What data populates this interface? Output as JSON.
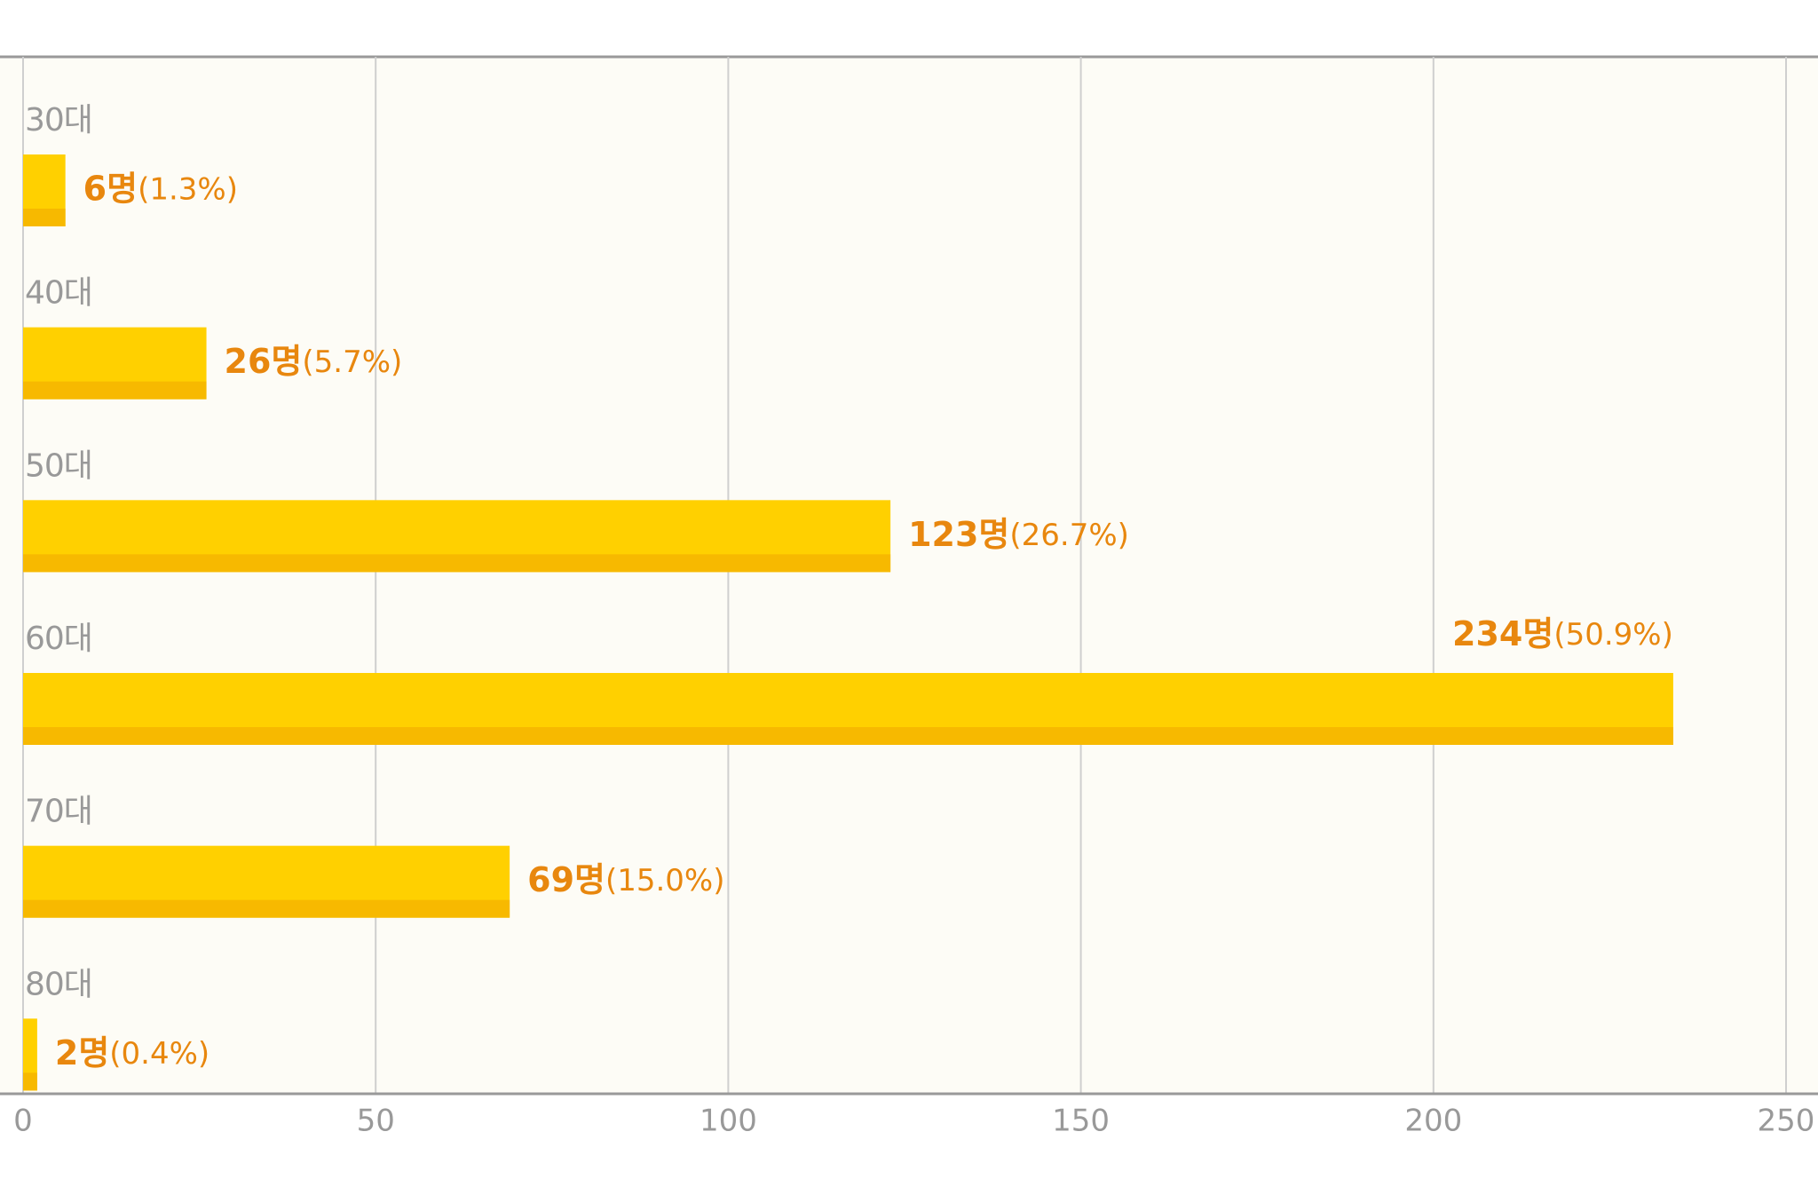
{
  "chart_data": {
    "type": "barh",
    "categories": [
      "30대",
      "40대",
      "50대",
      "60대",
      "70대",
      "80대"
    ],
    "values": [
      6,
      26,
      123,
      234,
      69,
      2
    ],
    "value_labels": [
      "6명(1.3%)",
      "26명(5.7%)",
      "123명(26.7%)",
      "234명(50.9%)",
      "69명(15.0%)",
      "2명(0.4%)"
    ],
    "color": "#ffd000",
    "edge_color": "#f7b900",
    "label_color": "#e8870e",
    "xlim": [
      0,
      250
    ],
    "xticks": [
      0,
      50,
      100,
      150,
      200,
      250
    ],
    "grid": true
  }
}
